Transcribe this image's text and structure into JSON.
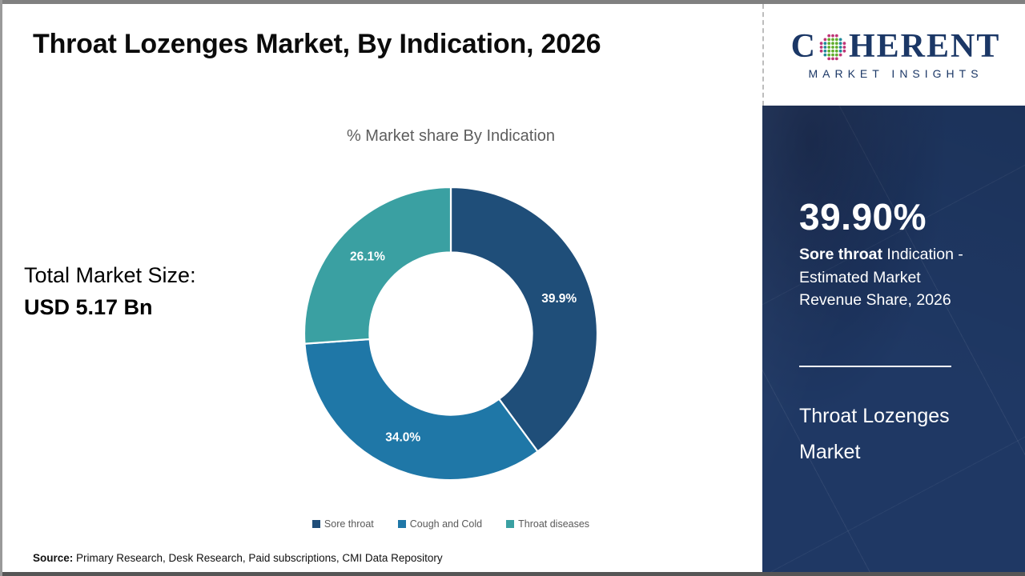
{
  "header": {
    "title": "Throat Lozenges Market, By Indication, 2026"
  },
  "logo": {
    "word_start": "C",
    "word_end": "HERENT",
    "subtitle": "MARKET INSIGHTS",
    "brand_color": "#1b3766",
    "globe_colors": {
      "green": "#62ae2e",
      "teal": "#1f8a9b",
      "magenta": "#bf3577"
    }
  },
  "left_panel": {
    "label": "Total Market Size:",
    "value": "USD 5.17 Bn"
  },
  "chart_data": {
    "type": "pie",
    "subtype": "donut",
    "title": "% Market share By Indication",
    "categories": [
      "Sore throat",
      "Cough and Cold",
      "Throat diseases"
    ],
    "values": [
      39.9,
      34.0,
      26.1
    ],
    "labels": [
      "39.9%",
      "34.0%",
      "26.1%"
    ],
    "colors": [
      "#1f4e79",
      "#1f77a7",
      "#3aa0a2"
    ],
    "inner_radius_ratio": 0.555,
    "start_angle_deg": 0,
    "legend_position": "bottom",
    "label_color": "#ffffff"
  },
  "sidebar": {
    "bg_color": "#1f3864",
    "stat_value": "39.90%",
    "stat_desc_bold": "Sore throat",
    "stat_desc_rest": " Indication - Estimated Market Revenue Share, 2026",
    "panel_title": "Throat Lozenges Market"
  },
  "footer": {
    "source_label": "Source:",
    "source_text": " Primary Research, Desk Research, Paid subscriptions, CMI Data Repository"
  }
}
